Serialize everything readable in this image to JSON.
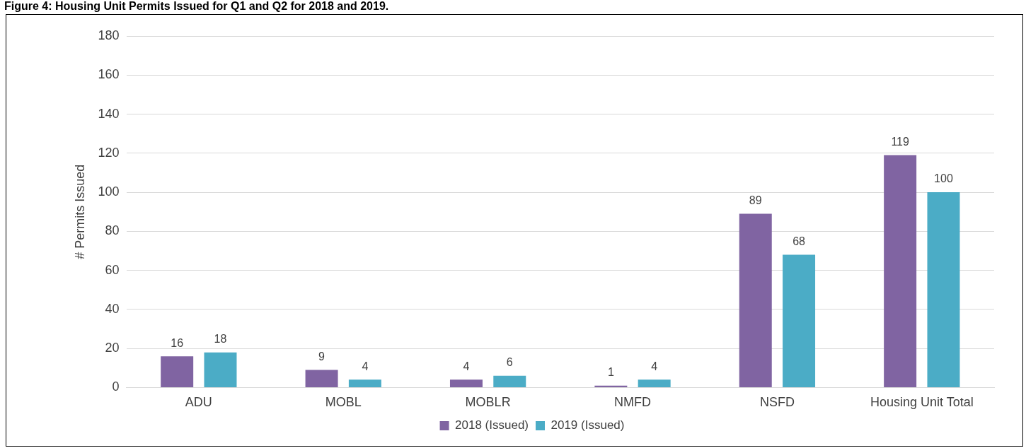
{
  "chart_data": {
    "type": "bar",
    "title": "Figure 4: Housing Unit Permits Issued for Q1 and Q2 for 2018 and 2019.",
    "ylabel": "# Permits Issued",
    "categories": [
      "ADU",
      "MOBL",
      "MOBLR",
      "NMFD",
      "NSFD",
      "Housing Unit Total"
    ],
    "series": [
      {
        "name": "2018 (Issued)",
        "color": "#8064a2",
        "values": [
          16,
          9,
          4,
          1,
          89,
          119
        ]
      },
      {
        "name": "2019 (Issued)",
        "color": "#4bacc6",
        "values": [
          18,
          4,
          6,
          4,
          68,
          100
        ]
      }
    ],
    "ylim": [
      0,
      180
    ],
    "yticks": [
      0,
      20,
      40,
      60,
      80,
      100,
      120,
      140,
      160,
      180
    ],
    "grid": "y",
    "legend": "bottom",
    "data_labels": true
  }
}
